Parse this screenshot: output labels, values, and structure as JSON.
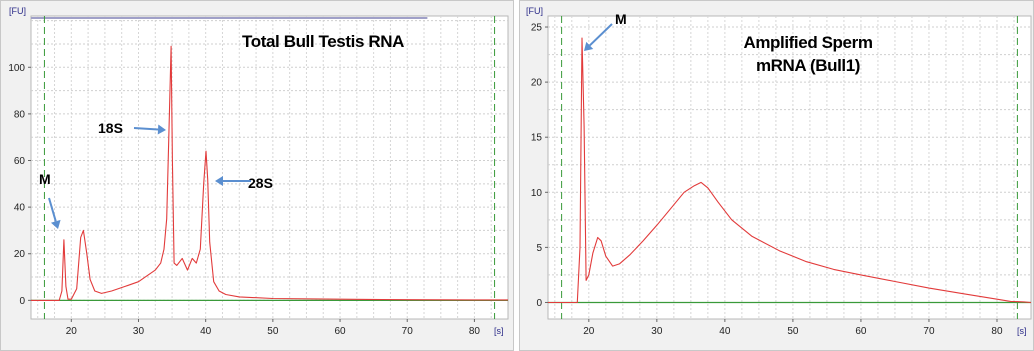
{
  "chart_data": [
    {
      "type": "line",
      "title": "Total Bull Testis RNA",
      "xunit": "[s]",
      "yunit": "[FU]",
      "xlim": [
        14,
        85
      ],
      "ylim": [
        -8,
        122
      ],
      "xticks": [
        20,
        30,
        40,
        50,
        60,
        70,
        80
      ],
      "yticks": [
        0,
        20,
        40,
        60,
        80,
        100
      ],
      "grid": true,
      "marker_lines_x": [
        16,
        83
      ],
      "series": [
        {
          "color": "#e23b3b",
          "x": [
            14,
            18.2,
            18.6,
            18.9,
            19.2,
            19.5,
            20,
            20.8,
            21.4,
            21.8,
            22.3,
            22.8,
            23.5,
            24.5,
            26,
            28,
            30,
            31.5,
            32.5,
            33.3,
            33.8,
            34.2,
            34.6,
            34.85,
            35.05,
            35.3,
            35.7,
            36.5,
            37.3,
            38,
            38.6,
            39.2,
            39.7,
            40.05,
            40.3,
            40.6,
            41.2,
            42,
            43,
            45,
            50,
            60,
            70,
            80,
            85
          ],
          "y": [
            0,
            0,
            4,
            26,
            6,
            0.5,
            0.5,
            5,
            27,
            30,
            20,
            9,
            4,
            3,
            4,
            6,
            8,
            11,
            13,
            16,
            22,
            35,
            80,
            109,
            60,
            16,
            15,
            18,
            13,
            18,
            16,
            22,
            50,
            64,
            52,
            25,
            8,
            4,
            2.5,
            1.5,
            0.8,
            0.5,
            0.3,
            0.2,
            0.2
          ]
        }
      ],
      "annotations": [
        {
          "label": "M",
          "x": 18.9,
          "y": 26
        },
        {
          "label": "18S",
          "x": 34.85,
          "y": 72
        },
        {
          "label": "28S",
          "x": 40.1,
          "y": 50
        }
      ]
    },
    {
      "type": "line",
      "title": "Amplified Sperm mRNA (Bull1)",
      "title_lines": [
        "Amplified Sperm",
        "mRNA (Bull1)"
      ],
      "xunit": "[s]",
      "yunit": "[FU]",
      "xlim": [
        14,
        85
      ],
      "ylim": [
        -1.5,
        26
      ],
      "xticks": [
        20,
        30,
        40,
        50,
        60,
        70,
        80
      ],
      "yticks": [
        0,
        5,
        10,
        15,
        20,
        25
      ],
      "grid": true,
      "marker_lines_x": [
        16,
        83
      ],
      "series": [
        {
          "color": "#e23b3b",
          "x": [
            14,
            18.3,
            18.7,
            19,
            19.3,
            19.6,
            20,
            20.6,
            21.3,
            21.8,
            22.5,
            23.5,
            24.5,
            26,
            28,
            30,
            32,
            34,
            35.5,
            36.5,
            37.5,
            39,
            41,
            44,
            48,
            52,
            56,
            60,
            65,
            70,
            75,
            80,
            82,
            84,
            85
          ],
          "y": [
            0,
            0,
            5,
            24,
            16,
            2,
            2.5,
            4.5,
            5.9,
            5.6,
            4.2,
            3.3,
            3.5,
            4.3,
            5.6,
            7,
            8.5,
            10,
            10.6,
            10.9,
            10.4,
            9.1,
            7.5,
            6,
            4.7,
            3.7,
            3,
            2.5,
            1.9,
            1.3,
            0.8,
            0.3,
            0.1,
            0.05,
            0
          ]
        }
      ],
      "annotations": [
        {
          "label": "M",
          "x": 19,
          "y": 24
        }
      ]
    }
  ]
}
